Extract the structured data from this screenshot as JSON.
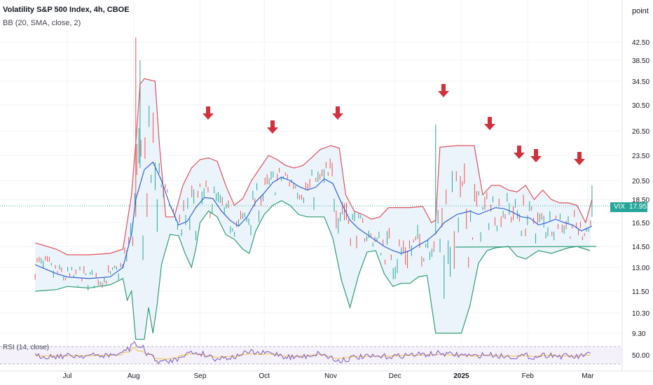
{
  "header": {
    "title": "Volatility S&P 500 Index, 4h, CBOE",
    "indicator": "BB (20, SMA, close, 2)",
    "rsi_label": "RSI (14, close)",
    "unit": "point"
  },
  "last_price": {
    "symbol": "VIX",
    "value": "17.95"
  },
  "colors": {
    "upper_band": "#e0505b",
    "middle_band": "#3060d8",
    "lower_band": "#2e9d75",
    "band_fill": "#e6f0fa",
    "candle_up": "#26a69a",
    "candle_down": "#ef5350",
    "arrow": "#d0313d",
    "rsi_line": "#7e57c2",
    "rsi_ma": "#f0c040",
    "price_tag": "#26a69a"
  },
  "chart_data": {
    "type": "line",
    "title": "Volatility S&P 500 Index, 4h, CBOE",
    "y_ticks": [
      42.5,
      38.5,
      34.5,
      30.5,
      26.5,
      23.5,
      20.5,
      18.5,
      16.5,
      14.5,
      13.0,
      11.5,
      10.3,
      9.3
    ],
    "y_tick_labels": [
      "42.50",
      "38.50",
      "34.50",
      "30.50",
      "26.50",
      "23.50",
      "20.50",
      "18.50",
      "16.50",
      "14.50",
      "13.00",
      "11.50",
      "10.30",
      "9.30"
    ],
    "x_tick_labels": [
      "Jul",
      "Aug",
      "Sep",
      "Oct",
      "Nov",
      "Dec",
      "2025",
      "Feb",
      "Mar"
    ],
    "x_tick_days": [
      30,
      61,
      92,
      122,
      153,
      183,
      214,
      245,
      273
    ],
    "x_range_days": [
      14,
      288
    ],
    "last_value": 17.95,
    "series": [
      {
        "name": "Upper",
        "points": [
          [
            15,
            14.8
          ],
          [
            25,
            14.3
          ],
          [
            30,
            13.9
          ],
          [
            40,
            13.9
          ],
          [
            50,
            14.0
          ],
          [
            56,
            14.3
          ],
          [
            60,
            19.0
          ],
          [
            62,
            25.0
          ],
          [
            64,
            34.0
          ],
          [
            66,
            35.0
          ],
          [
            71,
            34.5
          ],
          [
            73,
            25.0
          ],
          [
            76,
            17.0
          ],
          [
            80,
            17.0
          ],
          [
            84,
            20.0
          ],
          [
            88,
            22.0
          ],
          [
            92,
            23.0
          ],
          [
            96,
            23.2
          ],
          [
            100,
            22.8
          ],
          [
            104,
            20.0
          ],
          [
            108,
            18.0
          ],
          [
            112,
            18.6
          ],
          [
            116,
            20.5
          ],
          [
            120,
            22.0
          ],
          [
            124,
            23.5
          ],
          [
            128,
            23.0
          ],
          [
            132,
            22.3
          ],
          [
            136,
            22.0
          ],
          [
            140,
            22.3
          ],
          [
            144,
            23.2
          ],
          [
            148,
            24.2
          ],
          [
            153,
            24.7
          ],
          [
            157,
            24.4
          ],
          [
            160,
            19.0
          ],
          [
            164,
            17.5
          ],
          [
            168,
            17.2
          ],
          [
            172,
            16.8
          ],
          [
            176,
            17.0
          ],
          [
            180,
            17.8
          ],
          [
            184,
            17.8
          ],
          [
            190,
            17.8
          ],
          [
            196,
            17.9
          ],
          [
            200,
            16.5
          ],
          [
            202,
            16.7
          ],
          [
            204,
            24.5
          ],
          [
            212,
            24.7
          ],
          [
            220,
            24.7
          ],
          [
            224,
            19.0
          ],
          [
            228,
            20.0
          ],
          [
            232,
            20.0
          ],
          [
            236,
            19.5
          ],
          [
            240,
            19.3
          ],
          [
            244,
            20.0
          ],
          [
            248,
            18.5
          ],
          [
            252,
            19.5
          ],
          [
            256,
            18.5
          ],
          [
            260,
            18.2
          ],
          [
            264,
            18.2
          ],
          [
            268,
            18.0
          ],
          [
            272,
            16.5
          ],
          [
            275,
            18.5
          ]
        ]
      },
      {
        "name": "Middle",
        "points": [
          [
            15,
            13.2
          ],
          [
            25,
            12.6
          ],
          [
            30,
            12.4
          ],
          [
            40,
            12.3
          ],
          [
            50,
            12.4
          ],
          [
            56,
            13.0
          ],
          [
            60,
            15.5
          ],
          [
            62,
            18.5
          ],
          [
            66,
            21.8
          ],
          [
            70,
            22.7
          ],
          [
            74,
            20.5
          ],
          [
            78,
            18.0
          ],
          [
            82,
            16.3
          ],
          [
            86,
            16.6
          ],
          [
            90,
            17.8
          ],
          [
            94,
            18.7
          ],
          [
            98,
            18.6
          ],
          [
            102,
            17.5
          ],
          [
            106,
            16.7
          ],
          [
            110,
            16.2
          ],
          [
            114,
            17.0
          ],
          [
            118,
            18.3
          ],
          [
            122,
            19.2
          ],
          [
            126,
            20.3
          ],
          [
            130,
            20.9
          ],
          [
            134,
            20.5
          ],
          [
            138,
            19.9
          ],
          [
            142,
            19.5
          ],
          [
            146,
            19.8
          ],
          [
            150,
            20.7
          ],
          [
            154,
            20.2
          ],
          [
            158,
            18.2
          ],
          [
            162,
            16.7
          ],
          [
            166,
            16.0
          ],
          [
            170,
            15.5
          ],
          [
            174,
            15.0
          ],
          [
            178,
            14.5
          ],
          [
            182,
            14.2
          ],
          [
            186,
            14.0
          ],
          [
            190,
            14.2
          ],
          [
            194,
            14.6
          ],
          [
            198,
            15.0
          ],
          [
            202,
            15.6
          ],
          [
            206,
            16.5
          ],
          [
            212,
            17.2
          ],
          [
            218,
            17.5
          ],
          [
            222,
            17.2
          ],
          [
            226,
            17.5
          ],
          [
            230,
            17.8
          ],
          [
            234,
            17.7
          ],
          [
            238,
            17.4
          ],
          [
            242,
            17.0
          ],
          [
            246,
            16.9
          ],
          [
            250,
            16.3
          ],
          [
            254,
            16.5
          ],
          [
            258,
            16.8
          ],
          [
            262,
            16.5
          ],
          [
            266,
            16.3
          ],
          [
            270,
            15.8
          ],
          [
            275,
            16.2
          ]
        ]
      },
      {
        "name": "Lower",
        "points": [
          [
            15,
            11.5
          ],
          [
            25,
            11.6
          ],
          [
            30,
            11.8
          ],
          [
            40,
            11.7
          ],
          [
            50,
            11.9
          ],
          [
            56,
            12.3
          ],
          [
            58,
            11.0
          ],
          [
            60,
            11.5
          ],
          [
            62,
            9.0
          ],
          [
            66,
            9.0
          ],
          [
            68,
            10.6
          ],
          [
            70,
            9.3
          ],
          [
            72,
            10.8
          ],
          [
            74,
            13.2
          ],
          [
            78,
            15.5
          ],
          [
            82,
            15.4
          ],
          [
            85,
            14.0
          ],
          [
            88,
            13.0
          ],
          [
            90,
            14.3
          ],
          [
            92,
            16.5
          ],
          [
            96,
            17.5
          ],
          [
            100,
            17.0
          ],
          [
            104,
            15.5
          ],
          [
            108,
            15.1
          ],
          [
            112,
            14.3
          ],
          [
            115,
            14.0
          ],
          [
            118,
            15.8
          ],
          [
            122,
            17.2
          ],
          [
            126,
            18.0
          ],
          [
            130,
            18.4
          ],
          [
            134,
            18.0
          ],
          [
            138,
            17.2
          ],
          [
            142,
            17.0
          ],
          [
            146,
            17.0
          ],
          [
            150,
            17.0
          ],
          [
            154,
            15.2
          ],
          [
            158,
            12.2
          ],
          [
            162,
            10.6
          ],
          [
            166,
            12.5
          ],
          [
            170,
            14.1
          ],
          [
            174,
            14.2
          ],
          [
            178,
            12.6
          ],
          [
            182,
            11.8
          ],
          [
            186,
            12.0
          ],
          [
            190,
            12.0
          ],
          [
            194,
            12.4
          ],
          [
            198,
            12.5
          ],
          [
            202,
            9.3
          ],
          [
            204,
            9.3
          ],
          [
            208,
            9.3
          ],
          [
            214,
            9.3
          ],
          [
            218,
            10.7
          ],
          [
            222,
            13.3
          ],
          [
            226,
            14.2
          ],
          [
            230,
            14.4
          ],
          [
            236,
            14.5
          ],
          [
            240,
            13.8
          ],
          [
            244,
            13.6
          ],
          [
            250,
            14.2
          ],
          [
            256,
            14.0
          ],
          [
            260,
            14.2
          ],
          [
            264,
            14.4
          ],
          [
            268,
            14.5
          ],
          [
            270,
            14.4
          ],
          [
            274,
            14.2
          ]
        ]
      }
    ]
  }
}
